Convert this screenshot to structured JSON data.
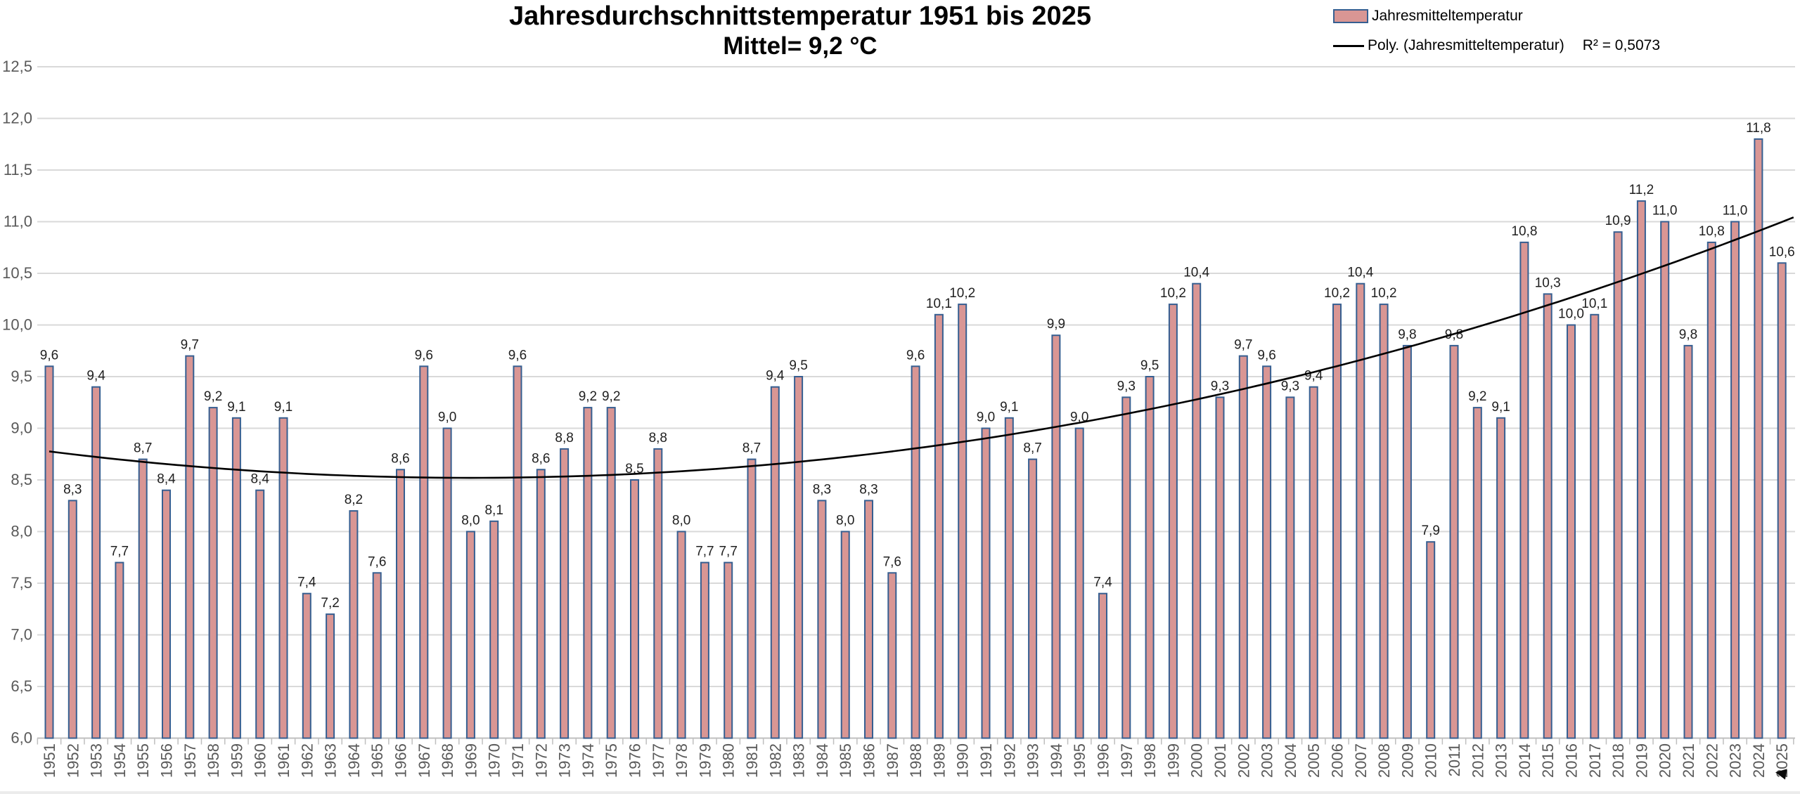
{
  "title": {
    "line1": "Jahresdurchschnittstemperatur 1951 bis 2025",
    "line2": "Mittel= 9,2 °C"
  },
  "legend": {
    "bar_label": "Jahresmitteltemperatur",
    "line_label": "Poly. (Jahresmitteltemperatur)",
    "r_squared": "R² = 0,5073"
  },
  "colors": {
    "bar_fill": "#D99694",
    "bar_border": "#365F91",
    "trendline": "#000000",
    "gridline": "#D9D9D9",
    "axis_line": "#BFBFBF",
    "axis_text": "#595959",
    "value_label_text": "#1f1f1f"
  },
  "icons": {
    "mouse_cursor": "◄"
  },
  "chart_data": {
    "type": "bar",
    "title": "Jahresdurchschnittstemperatur 1951 bis 2025",
    "subtitle": "Mittel= 9,2 °C",
    "xlabel": "",
    "ylabel": "",
    "ylim": [
      6.0,
      12.5
    ],
    "y_tick_step": 0.5,
    "grid": true,
    "legend_position": "top-right",
    "y_ticks": [
      "12,5",
      "12,0",
      "11,5",
      "11,0",
      "10,5",
      "10,0",
      "9,5",
      "9,0",
      "8,5",
      "8,0",
      "7,5",
      "7,0",
      "6,5",
      "6,0"
    ],
    "categories": [
      "1951",
      "1952",
      "1953",
      "1954",
      "1955",
      "1956",
      "1957",
      "1958",
      "1959",
      "1960",
      "1961",
      "1962",
      "1963",
      "1964",
      "1965",
      "1966",
      "1967",
      "1968",
      "1969",
      "1970",
      "1971",
      "1972",
      "1973",
      "1974",
      "1975",
      "1976",
      "1977",
      "1978",
      "1979",
      "1980",
      "1981",
      "1982",
      "1983",
      "1984",
      "1985",
      "1986",
      "1987",
      "1988",
      "1989",
      "1990",
      "1991",
      "1992",
      "1993",
      "1994",
      "1995",
      "1996",
      "1997",
      "1998",
      "1999",
      "2000",
      "2001",
      "2002",
      "2003",
      "2004",
      "2005",
      "2006",
      "2007",
      "2008",
      "2009",
      "2010",
      "2011",
      "2012",
      "2013",
      "2014",
      "2015",
      "2016",
      "2017",
      "2018",
      "2019",
      "2020",
      "2021",
      "2022",
      "2023",
      "2024",
      "2025"
    ],
    "series": [
      {
        "name": "Jahresmitteltemperatur",
        "values": [
          9.6,
          8.3,
          9.4,
          7.7,
          8.7,
          8.4,
          9.7,
          9.2,
          9.1,
          8.4,
          9.1,
          7.4,
          7.2,
          8.2,
          7.6,
          8.6,
          9.6,
          9.0,
          8.0,
          8.1,
          9.6,
          8.6,
          8.8,
          9.2,
          9.2,
          8.5,
          8.8,
          8.0,
          7.7,
          7.7,
          8.7,
          9.4,
          9.5,
          8.3,
          8.0,
          8.3,
          7.6,
          9.6,
          10.1,
          10.2,
          9.0,
          9.1,
          8.7,
          9.9,
          9.0,
          7.4,
          9.3,
          9.5,
          10.2,
          10.4,
          9.3,
          9.7,
          9.6,
          9.3,
          9.4,
          10.2,
          10.4,
          10.2,
          9.8,
          7.9,
          9.8,
          9.2,
          9.1,
          10.8,
          10.3,
          10.0,
          10.1,
          10.9,
          11.2,
          11.0,
          9.8,
          10.8,
          11.0,
          11.8,
          10.6
        ],
        "labels": [
          "9,6",
          "8,3",
          "9,4",
          "7,7",
          "8,7",
          "8,4",
          "9,7",
          "9,2",
          "9,1",
          "8,4",
          "9,1",
          "7,4",
          "7,2",
          "8,2",
          "7,6",
          "8,6",
          "9,6",
          "9,0",
          "8,0",
          "8,1",
          "9,6",
          "8,6",
          "8,8",
          "9,2",
          "9,2",
          "8,5",
          "8,8",
          "8,0",
          "7,7",
          "7,7",
          "8,7",
          "9,4",
          "9,5",
          "8,3",
          "8,0",
          "8,3",
          "7,6",
          "9,6",
          "10,1",
          "10,2",
          "9,0",
          "9,1",
          "8,7",
          "9,9",
          "9,0",
          "7,4",
          "9,3",
          "9,5",
          "10,2",
          "10,4",
          "9,3",
          "9,7",
          "9,6",
          "9,3",
          "9,4",
          "10,2",
          "10,4",
          "10,2",
          "9,8",
          "7,9",
          "9,8",
          "9,2",
          "9,1",
          "10,8",
          "10,3",
          "10,0",
          "10,1",
          "10,9",
          "11,2",
          "11,0",
          "9,8",
          "10,8",
          "11,0",
          "11,8",
          "10,6"
        ]
      }
    ],
    "trendline": {
      "name": "Poly. (Jahresmitteltemperatur)",
      "type": "polynomial",
      "degree": 2,
      "r_squared": 0.5073,
      "poly_a": 0.00079,
      "poly_vertex_index": 18,
      "poly_min_value": 8.52
    }
  }
}
